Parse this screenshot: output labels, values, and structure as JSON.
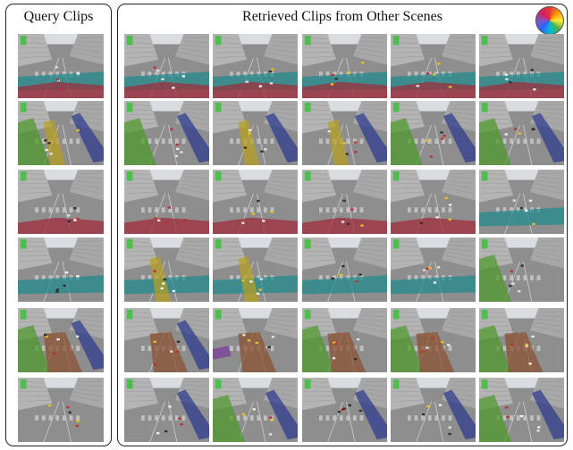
{
  "query_panel": {
    "title": "Query Clips",
    "clips": [
      {
        "overlays": [
          "teal",
          "crimson"
        ]
      },
      {
        "overlays": [
          "green",
          "yellow",
          "navy"
        ]
      },
      {
        "overlays": [
          "crimson"
        ]
      },
      {
        "overlays": [
          "teal"
        ]
      },
      {
        "overlays": [
          "green",
          "brown",
          "navy"
        ]
      },
      {
        "overlays": []
      }
    ]
  },
  "retrieved_panel": {
    "title": "Retrieved Clips from Other Scenes",
    "rows": [
      [
        {
          "overlays": [
            "teal",
            "crimson"
          ]
        },
        {
          "overlays": [
            "teal",
            "crimson"
          ]
        },
        {
          "overlays": [
            "teal",
            "crimson"
          ]
        },
        {
          "overlays": [
            "teal",
            "crimson"
          ]
        },
        {
          "overlays": [
            "teal",
            "crimson"
          ]
        }
      ],
      [
        {
          "overlays": [
            "green",
            "navy"
          ]
        },
        {
          "overlays": [
            "yellow",
            "navy"
          ]
        },
        {
          "overlays": [
            "yellow",
            "navy"
          ]
        },
        {
          "overlays": [
            "green",
            "navy"
          ]
        },
        {
          "overlays": [
            "green",
            "navy"
          ]
        }
      ],
      [
        {
          "overlays": [
            "crimson"
          ]
        },
        {
          "overlays": [
            "crimson"
          ]
        },
        {
          "overlays": [
            "crimson"
          ]
        },
        {
          "overlays": [
            "crimson"
          ]
        },
        {
          "overlays": [
            "teal"
          ]
        }
      ],
      [
        {
          "overlays": [
            "teal",
            "yellow"
          ]
        },
        {
          "overlays": [
            "teal",
            "yellow"
          ]
        },
        {
          "overlays": [
            "teal"
          ]
        },
        {
          "overlays": [
            "teal"
          ]
        },
        {
          "overlays": [
            "green"
          ]
        }
      ],
      [
        {
          "overlays": [
            "brown",
            "navy"
          ]
        },
        {
          "overlays": [
            "brown",
            "purple"
          ]
        },
        {
          "overlays": [
            "green",
            "brown"
          ]
        },
        {
          "overlays": [
            "green",
            "brown"
          ]
        },
        {
          "overlays": [
            "green",
            "brown"
          ]
        }
      ],
      [
        {
          "overlays": [
            "navy"
          ]
        },
        {
          "overlays": [
            "green",
            "navy"
          ]
        },
        {
          "overlays": [
            "navy"
          ]
        },
        {
          "overlays": [
            "navy"
          ]
        },
        {
          "overlays": [
            "green",
            "navy"
          ]
        }
      ]
    ]
  },
  "colors": {
    "teal": "#1e8a8e",
    "crimson": "#a12a3a",
    "green": "#4c9a2a",
    "yellow": "#b8a020",
    "navy": "#2b3a8f",
    "brown": "#8a5030",
    "purple": "#7a3a9a",
    "street": "#8e8e8e",
    "building": "#b4b4b4",
    "sky": "#d9dde2"
  },
  "legend": {
    "icon": "color-wheel-icon"
  }
}
